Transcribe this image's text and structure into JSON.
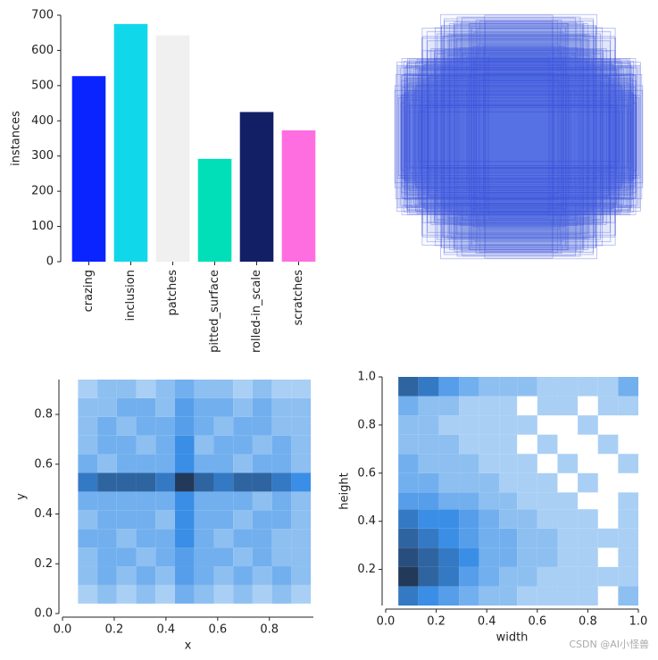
{
  "chart_data": [
    {
      "type": "bar",
      "ylabel": "instances",
      "categories": [
        "crazing",
        "inclusion",
        "patches",
        "pitted_surface",
        "rolled-in_scale",
        "scratches"
      ],
      "values": [
        527,
        675,
        643,
        292,
        425,
        373
      ],
      "colors": [
        "#0a24ff",
        "#10d8ea",
        "#f0f0f0",
        "#00dfb8",
        "#131f65",
        "#ff6ee0"
      ],
      "ylim": [
        0,
        700
      ],
      "yticks": [
        0,
        100,
        200,
        300,
        400,
        500,
        600,
        700
      ]
    },
    {
      "type": "hist2d",
      "xlabel": "x",
      "ylabel": "y",
      "cmap": [
        "#a9cff5",
        "#3a8ee6",
        "#22395a"
      ],
      "xlim": [
        0,
        0.97
      ],
      "ylim": [
        0,
        0.94
      ],
      "xticks": [
        {
          "value": 0,
          "label": "0.0"
        },
        0.2,
        0.4,
        0.6,
        0.8
      ],
      "yticks": [
        {
          "value": 0,
          "label": "0.0"
        },
        0.2,
        0.4,
        0.6,
        0.8
      ],
      "xbins": [
        0.06,
        0.135,
        0.21,
        0.285,
        0.36,
        0.435,
        0.51,
        0.585,
        0.66,
        0.735,
        0.81,
        0.885,
        0.96
      ],
      "ybins": [
        0.04,
        0.115,
        0.19,
        0.265,
        0.34,
        0.415,
        0.49,
        0.565,
        0.64,
        0.715,
        0.79,
        0.865,
        0.94
      ],
      "counts": [
        [
          1,
          2,
          1,
          2,
          1,
          3,
          2,
          1,
          2,
          1,
          2,
          1
        ],
        [
          2,
          3,
          2,
          3,
          2,
          4,
          3,
          2,
          3,
          2,
          3,
          2
        ],
        [
          2,
          3,
          3,
          2,
          3,
          4,
          3,
          3,
          2,
          3,
          2,
          2
        ],
        [
          3,
          3,
          2,
          3,
          3,
          5,
          3,
          2,
          3,
          3,
          2,
          2
        ],
        [
          2,
          3,
          3,
          3,
          2,
          5,
          3,
          3,
          2,
          3,
          3,
          2
        ],
        [
          3,
          3,
          3,
          3,
          3,
          5,
          3,
          3,
          3,
          2,
          3,
          2
        ],
        [
          6,
          7,
          7,
          7,
          6,
          9,
          7,
          6,
          7,
          7,
          6,
          5
        ],
        [
          3,
          2,
          3,
          3,
          3,
          5,
          3,
          3,
          2,
          3,
          3,
          2
        ],
        [
          2,
          3,
          3,
          2,
          3,
          5,
          2,
          3,
          3,
          2,
          3,
          2
        ],
        [
          2,
          3,
          2,
          3,
          3,
          4,
          3,
          2,
          3,
          3,
          2,
          2
        ],
        [
          2,
          2,
          3,
          3,
          2,
          4,
          3,
          3,
          2,
          3,
          2,
          2
        ],
        [
          1,
          2,
          2,
          1,
          2,
          3,
          2,
          2,
          1,
          2,
          1,
          1
        ]
      ]
    },
    {
      "type": "hist2d",
      "xlabel": "width",
      "ylabel": "height",
      "cmap": [
        "#a9cff5",
        "#3a8ee6",
        "#22395a"
      ],
      "xlim": [
        0,
        1
      ],
      "ylim": [
        0.05,
        1
      ],
      "xticks": [
        {
          "value": 0,
          "label": "0.0"
        },
        0.2,
        0.4,
        0.6,
        0.8,
        {
          "value": 1,
          "label": "1.0"
        }
      ],
      "yticks": [
        0.2,
        0.4,
        0.6,
        0.8,
        {
          "value": 1,
          "label": "1.0"
        }
      ],
      "xbins": [
        0.05,
        0.13,
        0.21,
        0.29,
        0.37,
        0.45,
        0.52,
        0.6,
        0.68,
        0.76,
        0.84,
        0.92,
        1.0
      ],
      "ybins": [
        0.05,
        0.13,
        0.21,
        0.29,
        0.37,
        0.45,
        0.52,
        0.6,
        0.68,
        0.76,
        0.84,
        0.92,
        1.0
      ],
      "counts": [
        [
          6,
          5,
          4,
          3,
          2,
          2,
          1,
          1,
          1,
          1,
          0,
          2
        ],
        [
          9,
          7,
          6,
          4,
          3,
          2,
          2,
          1,
          1,
          1,
          1,
          1
        ],
        [
          8,
          7,
          6,
          5,
          3,
          3,
          2,
          2,
          1,
          1,
          0,
          1
        ],
        [
          7,
          6,
          5,
          4,
          3,
          3,
          2,
          2,
          1,
          1,
          1,
          1
        ],
        [
          6,
          5,
          5,
          4,
          3,
          2,
          2,
          1,
          1,
          1,
          0,
          1
        ],
        [
          4,
          4,
          3,
          3,
          2,
          2,
          1,
          1,
          1,
          0,
          0,
          1
        ],
        [
          3,
          3,
          2,
          2,
          2,
          1,
          1,
          1,
          0,
          1,
          0,
          0
        ],
        [
          3,
          2,
          2,
          2,
          1,
          1,
          1,
          0,
          1,
          0,
          0,
          1
        ],
        [
          2,
          2,
          2,
          1,
          1,
          1,
          0,
          1,
          0,
          0,
          1,
          0
        ],
        [
          2,
          2,
          1,
          1,
          1,
          1,
          1,
          0,
          0,
          1,
          0,
          0
        ],
        [
          3,
          2,
          2,
          1,
          1,
          1,
          0,
          1,
          1,
          0,
          1,
          1
        ],
        [
          7,
          6,
          4,
          3,
          2,
          2,
          2,
          1,
          1,
          1,
          1,
          3
        ]
      ]
    }
  ],
  "watermark": "CSDN @AI小怪兽"
}
